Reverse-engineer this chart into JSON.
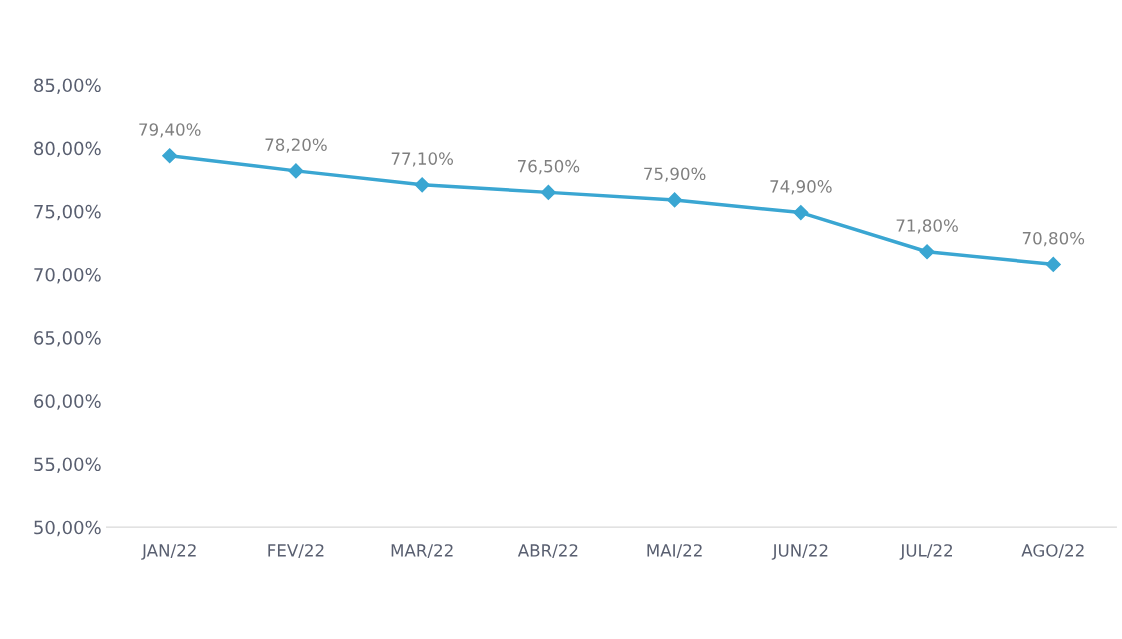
{
  "chart_data": {
    "type": "line",
    "categories": [
      "JAN/22",
      "FEV/22",
      "MAR/22",
      "ABR/22",
      "MAI/22",
      "JUN/22",
      "JUL/22",
      "AGO/22"
    ],
    "series": [
      {
        "color": "#3aa6d2",
        "values": [
          79.4,
          78.2,
          77.1,
          76.5,
          75.9,
          74.9,
          71.8,
          70.8
        ],
        "value_labels": [
          "79,40%",
          "78,20%",
          "77,10%",
          "76,50%",
          "75,90%",
          "74,90%",
          "71,80%",
          "70,80%"
        ]
      }
    ],
    "ylim": [
      50,
      85
    ],
    "yticks": [
      {
        "value": 50,
        "label": "50,00%"
      },
      {
        "value": 55,
        "label": "55,00%"
      },
      {
        "value": 60,
        "label": "60,00%"
      },
      {
        "value": 65,
        "label": "65,00%"
      },
      {
        "value": 70,
        "label": "70,00%"
      },
      {
        "value": 75,
        "label": "75,00%"
      },
      {
        "value": 80,
        "label": "80,00%"
      },
      {
        "value": 85,
        "label": "85,00%"
      }
    ],
    "grid": false,
    "legend": false,
    "marker": "diamond",
    "line_style": "solid"
  }
}
